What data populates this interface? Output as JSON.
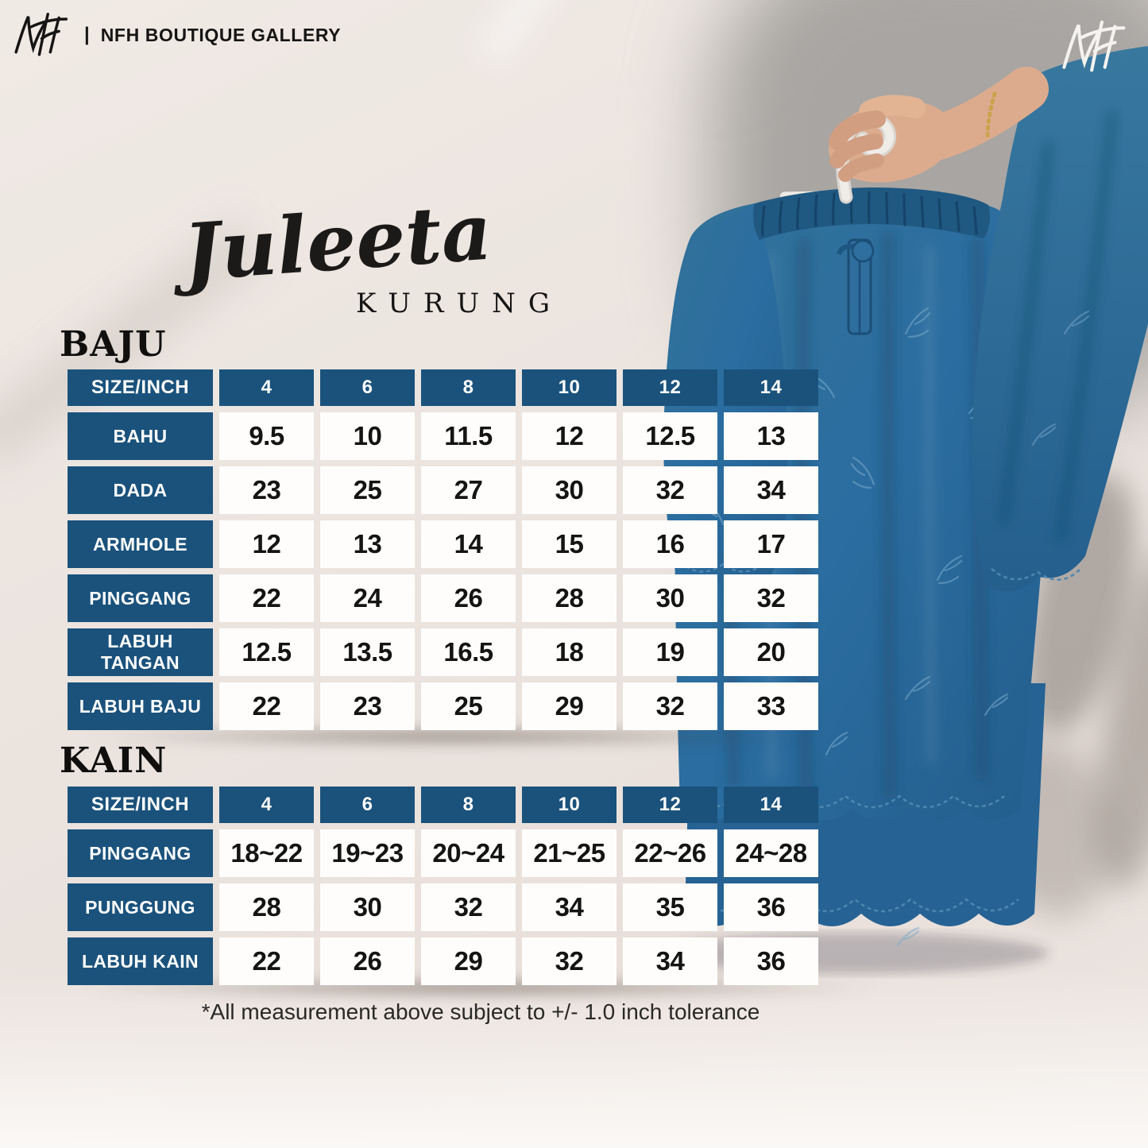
{
  "brand": {
    "logo_text": "NFH",
    "divider": "|",
    "name": "NFH BOUTIQUE GALLERY"
  },
  "title": {
    "script": "Juleeta",
    "sub": "KURUNG"
  },
  "sizes": [
    "4",
    "6",
    "8",
    "10",
    "12",
    "14"
  ],
  "tables": [
    {
      "id": "baju",
      "heading": "BAJU",
      "header_label": "SIZE/INCH",
      "rows": [
        {
          "label": "BAHU",
          "values": [
            "9.5",
            "10",
            "11.5",
            "12",
            "12.5",
            "13"
          ]
        },
        {
          "label": "DADA",
          "values": [
            "23",
            "25",
            "27",
            "30",
            "32",
            "34"
          ]
        },
        {
          "label": "ARMHOLE",
          "values": [
            "12",
            "13",
            "14",
            "15",
            "16",
            "17"
          ]
        },
        {
          "label": "PINGGANG",
          "values": [
            "22",
            "24",
            "26",
            "28",
            "30",
            "32"
          ]
        },
        {
          "label": "LABUH TANGAN",
          "values": [
            "12.5",
            "13.5",
            "16.5",
            "18",
            "19",
            "20"
          ]
        },
        {
          "label": "LABUH BAJU",
          "values": [
            "22",
            "23",
            "25",
            "29",
            "32",
            "33"
          ]
        }
      ]
    },
    {
      "id": "kain",
      "heading": "KAIN",
      "header_label": "SIZE/INCH",
      "rows": [
        {
          "label": "PINGGANG",
          "values": [
            "18~22",
            "19~23",
            "20~24",
            "21~25",
            "22~26",
            "24~28"
          ]
        },
        {
          "label": "PUNGGUNG",
          "values": [
            "28",
            "30",
            "32",
            "34",
            "35",
            "36"
          ]
        },
        {
          "label": "LABUH KAIN",
          "values": [
            "22",
            "26",
            "29",
            "32",
            "34",
            "36"
          ]
        }
      ]
    }
  ],
  "footnote": "*All measurement above subject to +/- 1.0 inch tolerance",
  "colors": {
    "accent_blue": "#1a527c",
    "fabric_blue": "#2b6da0",
    "background_beige": "#ebe4df",
    "wall_grey": "#a8a5a2"
  }
}
